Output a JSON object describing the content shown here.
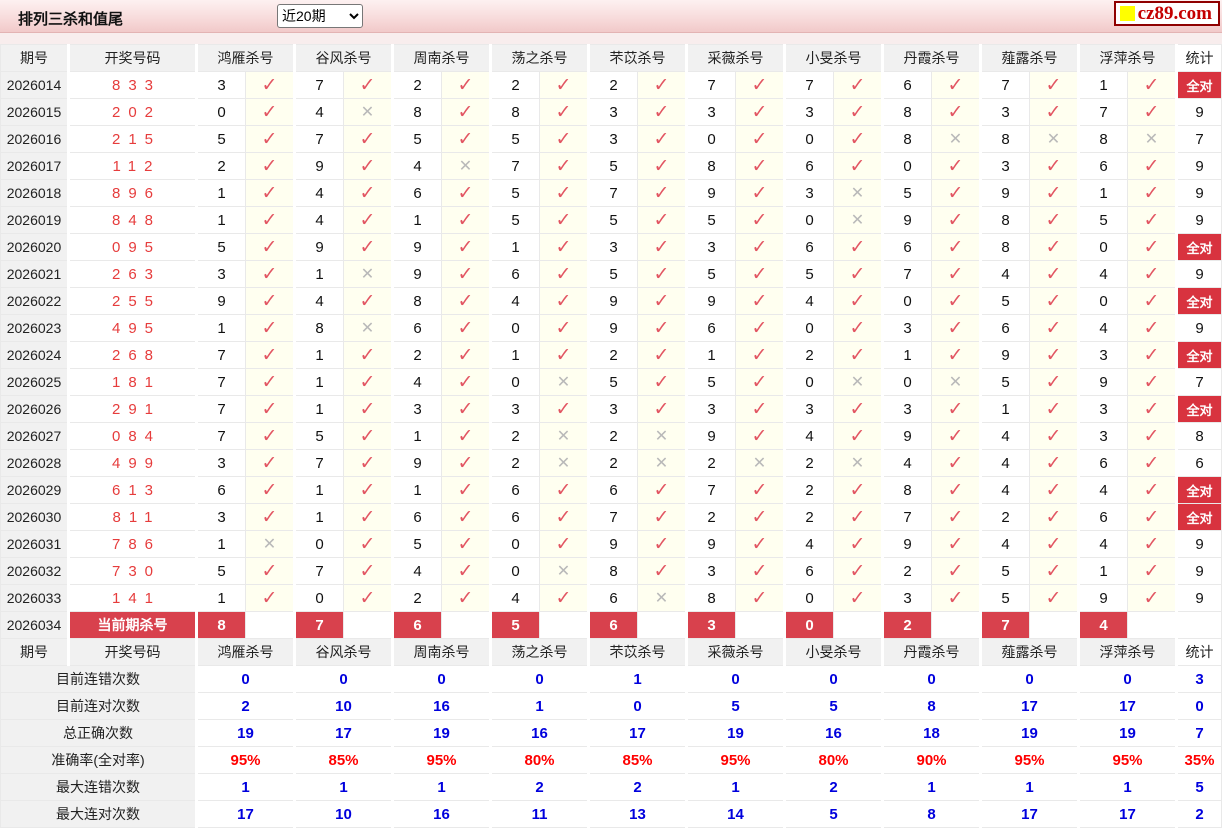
{
  "page": {
    "title": "排列三杀和值尾",
    "range_selector": {
      "selected": "近20期"
    },
    "logo": {
      "text": "cz89.com",
      "accent_color": "#ffff00",
      "text_color": "#c40000"
    }
  },
  "table": {
    "columns": {
      "period": "期号",
      "numbers": "开奖号码",
      "experts": [
        "鸿雁杀号",
        "谷风杀号",
        "周南杀号",
        "荡之杀号",
        "芣苡杀号",
        "采薇杀号",
        "小旻杀号",
        "丹霞杀号",
        "薤露杀号",
        "浮萍杀号"
      ],
      "stat": "统计"
    },
    "mark_true": "✓",
    "mark_false": "✕",
    "all_correct_label": "全对",
    "rows": [
      {
        "period": "2026014",
        "numbers": "833",
        "kills": [
          "3",
          "7",
          "2",
          "2",
          "2",
          "7",
          "7",
          "6",
          "7",
          "1"
        ],
        "hits": [
          1,
          1,
          1,
          1,
          1,
          1,
          1,
          1,
          1,
          1
        ],
        "stat": "全对"
      },
      {
        "period": "2026015",
        "numbers": "202",
        "kills": [
          "0",
          "4",
          "8",
          "8",
          "3",
          "3",
          "3",
          "8",
          "3",
          "7"
        ],
        "hits": [
          1,
          0,
          1,
          1,
          1,
          1,
          1,
          1,
          1,
          1
        ],
        "stat": "9"
      },
      {
        "period": "2026016",
        "numbers": "215",
        "kills": [
          "5",
          "7",
          "5",
          "5",
          "3",
          "0",
          "0",
          "8",
          "8",
          "8"
        ],
        "hits": [
          1,
          1,
          1,
          1,
          1,
          1,
          1,
          0,
          0,
          0
        ],
        "stat": "7"
      },
      {
        "period": "2026017",
        "numbers": "112",
        "kills": [
          "2",
          "9",
          "4",
          "7",
          "5",
          "8",
          "6",
          "0",
          "3",
          "6"
        ],
        "hits": [
          1,
          1,
          0,
          1,
          1,
          1,
          1,
          1,
          1,
          1
        ],
        "stat": "9"
      },
      {
        "period": "2026018",
        "numbers": "896",
        "kills": [
          "1",
          "4",
          "6",
          "5",
          "7",
          "9",
          "3",
          "5",
          "9",
          "1"
        ],
        "hits": [
          1,
          1,
          1,
          1,
          1,
          1,
          0,
          1,
          1,
          1
        ],
        "stat": "9"
      },
      {
        "period": "2026019",
        "numbers": "848",
        "kills": [
          "1",
          "4",
          "1",
          "5",
          "5",
          "5",
          "0",
          "9",
          "8",
          "5"
        ],
        "hits": [
          1,
          1,
          1,
          1,
          1,
          1,
          0,
          1,
          1,
          1
        ],
        "stat": "9"
      },
      {
        "period": "2026020",
        "numbers": "095",
        "kills": [
          "5",
          "9",
          "9",
          "1",
          "3",
          "3",
          "6",
          "6",
          "8",
          "0"
        ],
        "hits": [
          1,
          1,
          1,
          1,
          1,
          1,
          1,
          1,
          1,
          1
        ],
        "stat": "全对"
      },
      {
        "period": "2026021",
        "numbers": "263",
        "kills": [
          "3",
          "1",
          "9",
          "6",
          "5",
          "5",
          "5",
          "7",
          "4",
          "4"
        ],
        "hits": [
          1,
          0,
          1,
          1,
          1,
          1,
          1,
          1,
          1,
          1
        ],
        "stat": "9"
      },
      {
        "period": "2026022",
        "numbers": "255",
        "kills": [
          "9",
          "4",
          "8",
          "4",
          "9",
          "9",
          "4",
          "0",
          "5",
          "0"
        ],
        "hits": [
          1,
          1,
          1,
          1,
          1,
          1,
          1,
          1,
          1,
          1
        ],
        "stat": "全对"
      },
      {
        "period": "2026023",
        "numbers": "495",
        "kills": [
          "1",
          "8",
          "6",
          "0",
          "9",
          "6",
          "0",
          "3",
          "6",
          "4"
        ],
        "hits": [
          1,
          0,
          1,
          1,
          1,
          1,
          1,
          1,
          1,
          1
        ],
        "stat": "9"
      },
      {
        "period": "2026024",
        "numbers": "268",
        "kills": [
          "7",
          "1",
          "2",
          "1",
          "2",
          "1",
          "2",
          "1",
          "9",
          "3"
        ],
        "hits": [
          1,
          1,
          1,
          1,
          1,
          1,
          1,
          1,
          1,
          1
        ],
        "stat": "全对"
      },
      {
        "period": "2026025",
        "numbers": "181",
        "kills": [
          "7",
          "1",
          "4",
          "0",
          "5",
          "5",
          "0",
          "0",
          "5",
          "9"
        ],
        "hits": [
          1,
          1,
          1,
          0,
          1,
          1,
          0,
          0,
          1,
          1
        ],
        "stat": "7"
      },
      {
        "period": "2026026",
        "numbers": "291",
        "kills": [
          "7",
          "1",
          "3",
          "3",
          "3",
          "3",
          "3",
          "3",
          "1",
          "3"
        ],
        "hits": [
          1,
          1,
          1,
          1,
          1,
          1,
          1,
          1,
          1,
          1
        ],
        "stat": "全对"
      },
      {
        "period": "2026027",
        "numbers": "084",
        "kills": [
          "7",
          "5",
          "1",
          "2",
          "2",
          "9",
          "4",
          "9",
          "4",
          "3"
        ],
        "hits": [
          1,
          1,
          1,
          0,
          0,
          1,
          1,
          1,
          1,
          1
        ],
        "stat": "8"
      },
      {
        "period": "2026028",
        "numbers": "499",
        "kills": [
          "3",
          "7",
          "9",
          "2",
          "2",
          "2",
          "2",
          "4",
          "4",
          "6"
        ],
        "hits": [
          1,
          1,
          1,
          0,
          0,
          0,
          0,
          1,
          1,
          1
        ],
        "stat": "6"
      },
      {
        "period": "2026029",
        "numbers": "613",
        "kills": [
          "6",
          "1",
          "1",
          "6",
          "6",
          "7",
          "2",
          "8",
          "4",
          "4"
        ],
        "hits": [
          1,
          1,
          1,
          1,
          1,
          1,
          1,
          1,
          1,
          1
        ],
        "stat": "全对"
      },
      {
        "period": "2026030",
        "numbers": "811",
        "kills": [
          "3",
          "1",
          "6",
          "6",
          "7",
          "2",
          "2",
          "7",
          "2",
          "6"
        ],
        "hits": [
          1,
          1,
          1,
          1,
          1,
          1,
          1,
          1,
          1,
          1
        ],
        "stat": "全对"
      },
      {
        "period": "2026031",
        "numbers": "786",
        "kills": [
          "1",
          "0",
          "5",
          "0",
          "9",
          "9",
          "4",
          "9",
          "4",
          "4"
        ],
        "hits": [
          0,
          1,
          1,
          1,
          1,
          1,
          1,
          1,
          1,
          1
        ],
        "stat": "9"
      },
      {
        "period": "2026032",
        "numbers": "730",
        "kills": [
          "5",
          "7",
          "4",
          "0",
          "8",
          "3",
          "6",
          "2",
          "5",
          "1"
        ],
        "hits": [
          1,
          1,
          1,
          0,
          1,
          1,
          1,
          1,
          1,
          1
        ],
        "stat": "9"
      },
      {
        "period": "2026033",
        "numbers": "141",
        "kills": [
          "1",
          "0",
          "2",
          "4",
          "6",
          "8",
          "0",
          "3",
          "5",
          "9"
        ],
        "hits": [
          1,
          1,
          1,
          1,
          0,
          1,
          1,
          1,
          1,
          1
        ],
        "stat": "9"
      }
    ],
    "current_row": {
      "period": "2026034",
      "label": "当前期杀号",
      "kills": [
        "8",
        "7",
        "6",
        "5",
        "6",
        "3",
        "0",
        "2",
        "7",
        "4"
      ]
    },
    "summary_rows": [
      {
        "label": "目前连错次数",
        "values": [
          "0",
          "0",
          "0",
          "0",
          "1",
          "0",
          "0",
          "0",
          "0",
          "0"
        ],
        "stat": "3",
        "style": "blue"
      },
      {
        "label": "目前连对次数",
        "values": [
          "2",
          "10",
          "16",
          "1",
          "0",
          "5",
          "5",
          "8",
          "17",
          "17"
        ],
        "stat": "0",
        "style": "blue"
      },
      {
        "label": "总正确次数",
        "values": [
          "19",
          "17",
          "19",
          "16",
          "17",
          "19",
          "16",
          "18",
          "19",
          "19"
        ],
        "stat": "7",
        "style": "blue"
      },
      {
        "label": "准确率(全对率)",
        "values": [
          "95%",
          "85%",
          "95%",
          "80%",
          "85%",
          "95%",
          "80%",
          "90%",
          "95%",
          "95%"
        ],
        "stat": "35%",
        "style": "red"
      },
      {
        "label": "最大连错次数",
        "values": [
          "1",
          "1",
          "1",
          "2",
          "2",
          "1",
          "2",
          "1",
          "1",
          "1"
        ],
        "stat": "5",
        "style": "blue"
      },
      {
        "label": "最大连对次数",
        "values": [
          "17",
          "10",
          "16",
          "11",
          "13",
          "14",
          "5",
          "8",
          "17",
          "17"
        ],
        "stat": "2",
        "style": "blue"
      }
    ]
  },
  "colors": {
    "check": "#e25562",
    "cross": "#b9b9b9",
    "all_correct_bg": "#d8333f",
    "current_badge_bg": "#d8414d",
    "draw_number": "#e63c3c",
    "summary_blue": "#0000dd",
    "summary_red": "#ff0000",
    "topbar_pink": "#f8dcdc"
  }
}
